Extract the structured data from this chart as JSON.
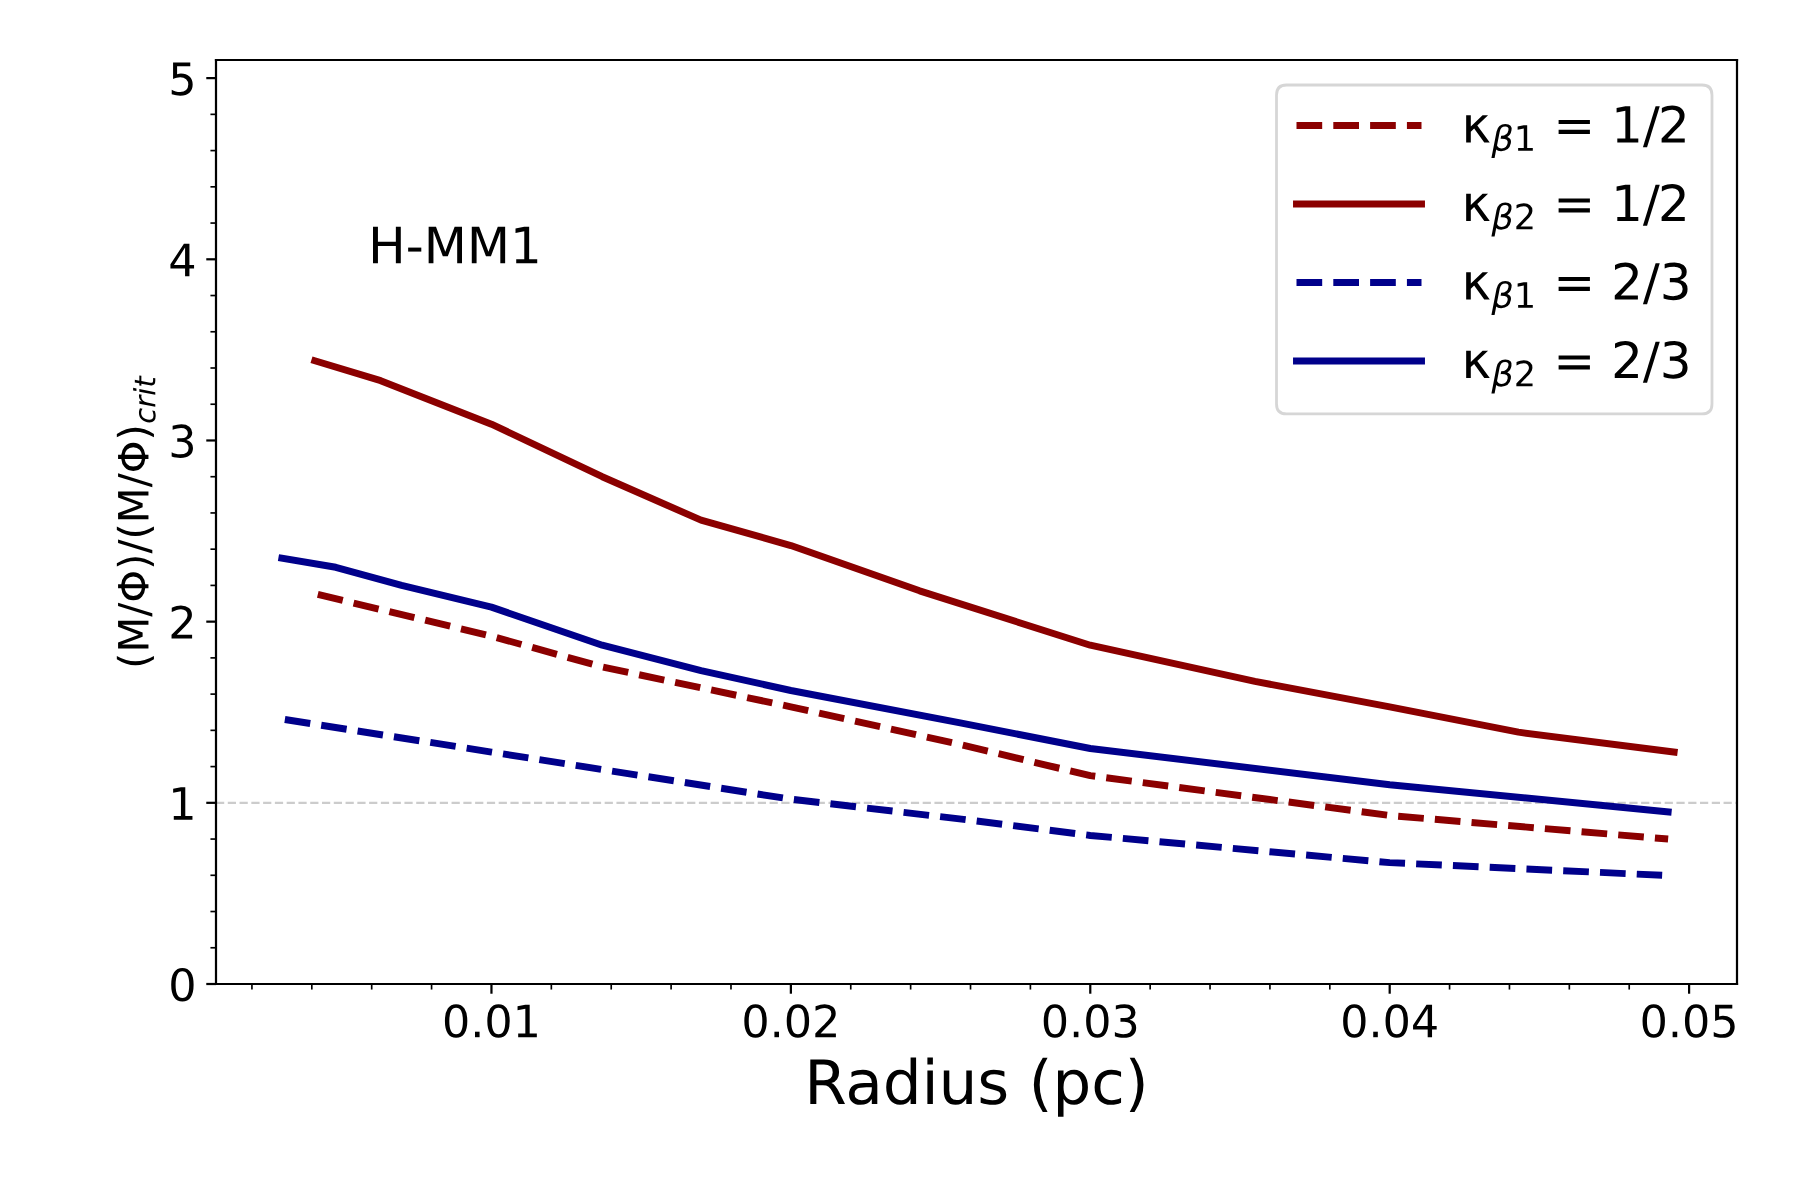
{
  "chart_data": {
    "type": "line",
    "xlabel": "Radius (pc)",
    "ylabel": "(M/Φ)/(M/Φ)$_{crit}$",
    "annotations": [
      "H-MM1"
    ],
    "xlim": [
      0.0008,
      0.0516
    ],
    "ylim": [
      0,
      5.1
    ],
    "xticks": [
      0.01,
      0.02,
      0.03,
      0.04,
      0.05
    ],
    "yticks": [
      0,
      1,
      2,
      3,
      4,
      5
    ],
    "grid": false,
    "legend": "top right",
    "marker": "none",
    "ref_lines": [
      {
        "axis": "y",
        "value": 1,
        "color": "#cccccc",
        "line_style": "dashed"
      }
    ],
    "series": [
      {
        "name": "κ$_{β1}$ = 1/2",
        "color": "#8b0000",
        "line_style": "dashed",
        "x": [
          0.0042,
          0.01,
          0.0137,
          0.02,
          0.0257,
          0.03,
          0.04,
          0.0493
        ],
        "values": [
          2.15,
          1.92,
          1.75,
          1.53,
          1.32,
          1.15,
          0.93,
          0.8
        ]
      },
      {
        "name": "κ$_{β2}$ = 1/2",
        "color": "#8b0000",
        "line_style": "solid",
        "x": [
          0.0041,
          0.0063,
          0.01,
          0.0137,
          0.017,
          0.02,
          0.0243,
          0.03,
          0.0355,
          0.04,
          0.0443,
          0.0495
        ],
        "values": [
          3.44,
          3.33,
          3.09,
          2.8,
          2.56,
          2.42,
          2.17,
          1.87,
          1.67,
          1.53,
          1.39,
          1.28
        ]
      },
      {
        "name": "κ$_{β1}$ = 2/3",
        "color": "#00008b",
        "line_style": "dashed",
        "x": [
          0.0031,
          0.01,
          0.02,
          0.0257,
          0.03,
          0.04,
          0.0491
        ],
        "values": [
          1.46,
          1.28,
          1.02,
          0.91,
          0.82,
          0.67,
          0.6
        ]
      },
      {
        "name": "κ$_{β2}$ = 2/3",
        "color": "#00008b",
        "line_style": "solid",
        "x": [
          0.003,
          0.0048,
          0.007,
          0.01,
          0.0137,
          0.017,
          0.02,
          0.0257,
          0.03,
          0.04,
          0.0493
        ],
        "values": [
          2.35,
          2.3,
          2.2,
          2.08,
          1.87,
          1.73,
          1.62,
          1.44,
          1.3,
          1.1,
          0.95
        ]
      }
    ]
  }
}
